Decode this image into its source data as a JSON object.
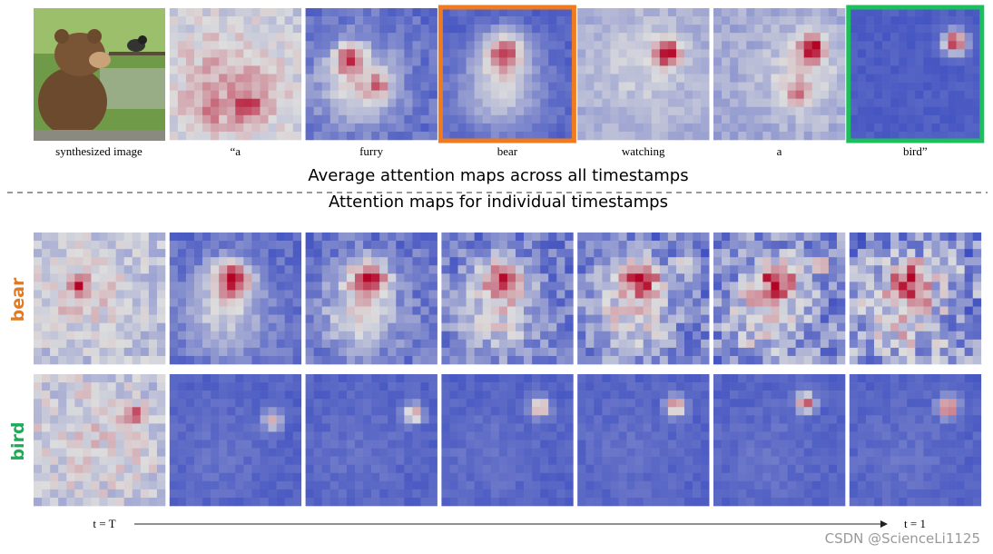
{
  "captions": [
    "synthesized image",
    "“a",
    "furry",
    "bear",
    "watching",
    "a",
    "bird”"
  ],
  "average_title": "Average attention maps across all timestamps",
  "individual_title": "Attention maps for individual  timestamps",
  "row_labels": [
    "bear",
    "bird"
  ],
  "time_start": "t = T",
  "time_end": "t = 1",
  "watermark": "CSDN @ScienceLi1125"
}
